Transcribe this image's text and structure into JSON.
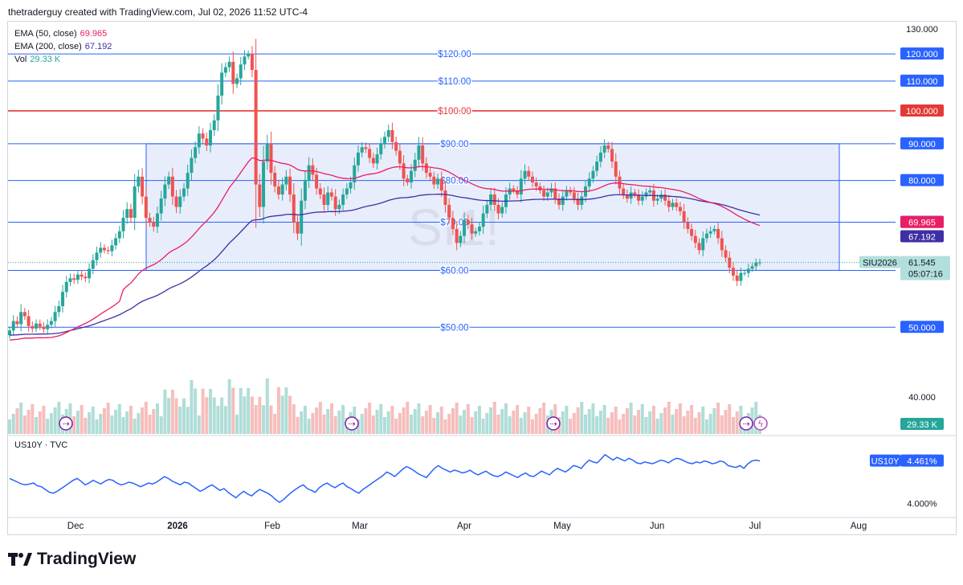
{
  "header": {
    "attribution": "thetraderguy created with TradingView.com, Jul 02, 2026 11:52 UTC-4"
  },
  "legend": {
    "ema50_label": "EMA (50, close)",
    "ema50_value": "69.965",
    "ema200_label": "EMA (200, close)",
    "ema200_value": "67.192",
    "vol_label": "Vol",
    "vol_value": "29.33 K"
  },
  "sub_title": "US10Y · TVC",
  "brand": {
    "name": "TradingView"
  },
  "colors": {
    "up": "#26a69a",
    "down": "#ef5350",
    "ema50": "#e91e63",
    "ema200": "#3f2fa6",
    "hline": "#2962ff",
    "redline": "#e53935",
    "range_fill": "#e8edfb",
    "us10y": "#2962ff"
  },
  "chart_data": {
    "type": "candlestick",
    "symbol": "SIU2026",
    "watermark": "SI1!",
    "last_price": "61.545",
    "countdown": "05:07:16",
    "ylim": [
      36,
      132
    ],
    "y_scale": "log",
    "y_ticks": [
      "130.000",
      "120.000",
      "110.000",
      "100.000",
      "90.000",
      "80.000",
      "70.000",
      "60.000",
      "50.000",
      "40.000"
    ],
    "h_lines": [
      {
        "price": 120,
        "label": "$120.00",
        "color": "blue"
      },
      {
        "price": 110,
        "label": "$110.00",
        "color": "blue"
      },
      {
        "price": 100,
        "label": "$100.00",
        "color": "red"
      },
      {
        "price": 90,
        "label": "$90.00",
        "color": "blue"
      },
      {
        "price": 80,
        "label": "$80.00",
        "color": "blue"
      },
      {
        "price": 70,
        "label": "$70.00",
        "color": "blue"
      },
      {
        "price": 60,
        "label": "$60.00",
        "color": "blue"
      },
      {
        "price": 50,
        "label": "$50.00",
        "color": "blue"
      }
    ],
    "range_box": {
      "top": 90,
      "bottom": 60
    },
    "x_ticks": [
      "Dec",
      "2026",
      "Feb",
      "Mar",
      "Apr",
      "May",
      "Jun",
      "Jul",
      "Aug"
    ],
    "closes": [
      49.5,
      51,
      50.5,
      52.5,
      51.8,
      50.2,
      49.8,
      50.6,
      50.1,
      49.7,
      50.4,
      51,
      52.5,
      53.5,
      56,
      57.8,
      58.5,
      58.2,
      59.2,
      58.8,
      58.5,
      60.3,
      62,
      63.5,
      64.5,
      64,
      63.8,
      65,
      66.5,
      68,
      71,
      73,
      71,
      78.5,
      81,
      76,
      71,
      70,
      69,
      72,
      75.5,
      79,
      81,
      76,
      73.5,
      76,
      78,
      82,
      86,
      89,
      93,
      91.5,
      89.5,
      94,
      97,
      105,
      113,
      115,
      117,
      109,
      111,
      116,
      119,
      120,
      114,
      79,
      73.5,
      85,
      90,
      82,
      78.5,
      76.5,
      79,
      81,
      76.5,
      70,
      67.5,
      75,
      80,
      84,
      81.5,
      78,
      76.5,
      74,
      77,
      76,
      73,
      74,
      76.5,
      78,
      79.5,
      84,
      87.5,
      89,
      88.5,
      86,
      84.5,
      87,
      90,
      92,
      94,
      90.5,
      88,
      84.5,
      80.5,
      79.5,
      82.5,
      85.5,
      89.5,
      84.5,
      82,
      81,
      79,
      80.5,
      77.5,
      74,
      71,
      68.5,
      65.5,
      67,
      70.5,
      69.5,
      67.5,
      68,
      69,
      72,
      74,
      76.5,
      74,
      72,
      73.5,
      76.5,
      78,
      77.5,
      76.5,
      80.5,
      82.5,
      81,
      79.5,
      78.5,
      77.5,
      76,
      77,
      78,
      75.5,
      74,
      76,
      77.5,
      77,
      75.5,
      74,
      76,
      78.5,
      80.5,
      82.5,
      85,
      87.5,
      89.5,
      88.5,
      85,
      81,
      78,
      76.5,
      75.5,
      77,
      76.5,
      75,
      76,
      77,
      77.5,
      75,
      75.5,
      76.5,
      75,
      73.5,
      74.5,
      73.5,
      72.5,
      70,
      68.5,
      67,
      65.5,
      64,
      66.5,
      67.5,
      68,
      68.5,
      66.5,
      64,
      62.5,
      60.5,
      59,
      58,
      59.5,
      59.5,
      60.3,
      60.8,
      61.5,
      61.545
    ]
  },
  "us10y": {
    "last": "4.461%",
    "ticks": [
      "4.500%",
      "4.000%"
    ],
    "ylim": [
      3.95,
      4.58
    ],
    "values": [
      4.27,
      4.25,
      4.23,
      4.21,
      4.2,
      4.21,
      4.22,
      4.19,
      4.18,
      4.15,
      4.12,
      4.11,
      4.13,
      4.16,
      4.19,
      4.22,
      4.25,
      4.27,
      4.24,
      4.2,
      4.22,
      4.25,
      4.23,
      4.21,
      4.24,
      4.26,
      4.25,
      4.22,
      4.2,
      4.21,
      4.23,
      4.22,
      4.2,
      4.18,
      4.2,
      4.22,
      4.21,
      4.23,
      4.26,
      4.29,
      4.27,
      4.24,
      4.22,
      4.2,
      4.23,
      4.22,
      4.19,
      4.16,
      4.13,
      4.15,
      4.18,
      4.2,
      4.17,
      4.14,
      4.16,
      4.12,
      4.09,
      4.06,
      4.1,
      4.13,
      4.1,
      4.08,
      4.12,
      4.15,
      4.13,
      4.11,
      4.08,
      4.04,
      4.01,
      4.04,
      4.08,
      4.12,
      4.15,
      4.18,
      4.2,
      4.16,
      4.14,
      4.12,
      4.17,
      4.2,
      4.22,
      4.19,
      4.17,
      4.2,
      4.22,
      4.18,
      4.16,
      4.13,
      4.11,
      4.15,
      4.18,
      4.21,
      4.24,
      4.27,
      4.3,
      4.34,
      4.32,
      4.29,
      4.33,
      4.37,
      4.4,
      4.38,
      4.35,
      4.32,
      4.3,
      4.28,
      4.33,
      4.38,
      4.41,
      4.38,
      4.36,
      4.34,
      4.36,
      4.35,
      4.33,
      4.34,
      4.36,
      4.33,
      4.31,
      4.33,
      4.35,
      4.32,
      4.3,
      4.29,
      4.31,
      4.34,
      4.32,
      4.3,
      4.28,
      4.31,
      4.33,
      4.3,
      4.29,
      4.32,
      4.35,
      4.33,
      4.31,
      4.35,
      4.38,
      4.36,
      4.34,
      4.37,
      4.41,
      4.4,
      4.38,
      4.43,
      4.47,
      4.45,
      4.44,
      4.48,
      4.53,
      4.5,
      4.47,
      4.5,
      4.48,
      4.46,
      4.49,
      4.47,
      4.44,
      4.43,
      4.45,
      4.44,
      4.43,
      4.45,
      4.47,
      4.46,
      4.44,
      4.47,
      4.49,
      4.48,
      4.46,
      4.44,
      4.43,
      4.45,
      4.44,
      4.46,
      4.45,
      4.43,
      4.44,
      4.46,
      4.45,
      4.41,
      4.4,
      4.39,
      4.41,
      4.38,
      4.43,
      4.46,
      4.47,
      4.461
    ]
  }
}
